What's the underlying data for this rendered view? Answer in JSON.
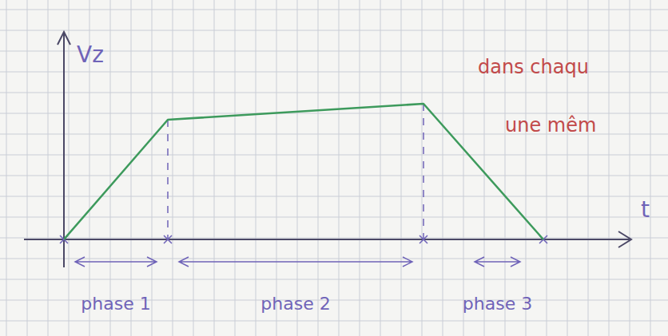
{
  "chart_data": {
    "type": "line",
    "x_label": "t",
    "y_label": "Vz",
    "x": [
      0,
      1.3,
      4.5,
      6.0
    ],
    "values": [
      0,
      1.5,
      1.7,
      0
    ],
    "color": "#3d9a5c",
    "xlim": [
      0,
      7.1
    ],
    "ylim": [
      0,
      2.6
    ],
    "tick_labels": false,
    "phases": [
      {
        "label": "phase 1",
        "start": 0,
        "end": 1.3
      },
      {
        "label": "phase 2",
        "start": 1.3,
        "end": 4.5
      },
      {
        "label": "phase 3",
        "start": 5.0,
        "end": 5.85
      }
    ],
    "annotations": [
      {
        "text": "dans chaqu"
      },
      {
        "text": "une mêm"
      }
    ]
  }
}
